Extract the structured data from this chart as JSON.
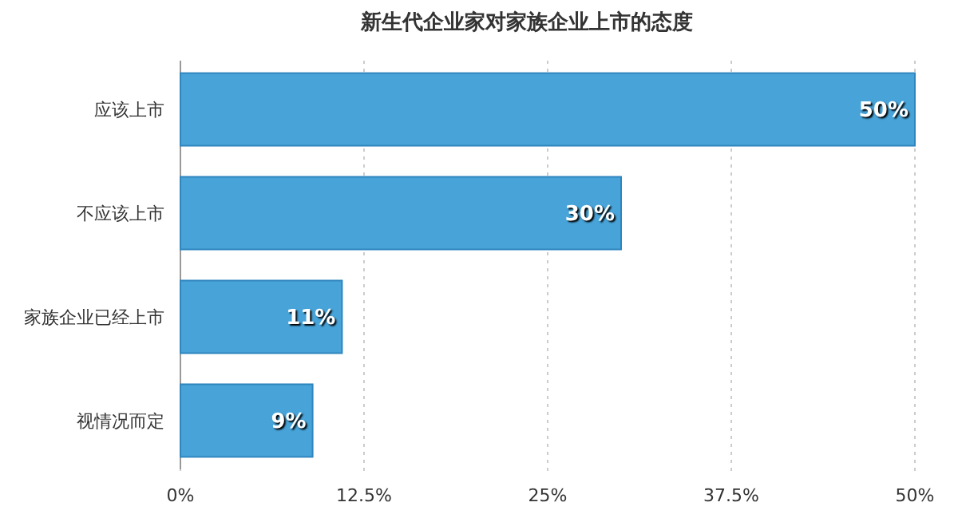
{
  "chart_data": {
    "type": "bar",
    "orientation": "horizontal",
    "title": "新生代企业家对家族企业上市的态度",
    "categories": [
      "应该上市",
      "不应该上市",
      "家族企业已经上市",
      "视情况而定"
    ],
    "values": [
      50,
      30,
      11,
      9
    ],
    "color": "#47a3d8",
    "value_labels": [
      "50%",
      "30%",
      "11%",
      "9%"
    ],
    "xlim": [
      0,
      50
    ],
    "xticks": [
      {
        "value": 0,
        "label": "0%"
      },
      {
        "value": 12.5,
        "label": "12.5%"
      },
      {
        "value": 25,
        "label": "25%"
      },
      {
        "value": 37.5,
        "label": "37.5%"
      },
      {
        "value": 50,
        "label": "50%"
      }
    ],
    "grid": "x"
  }
}
